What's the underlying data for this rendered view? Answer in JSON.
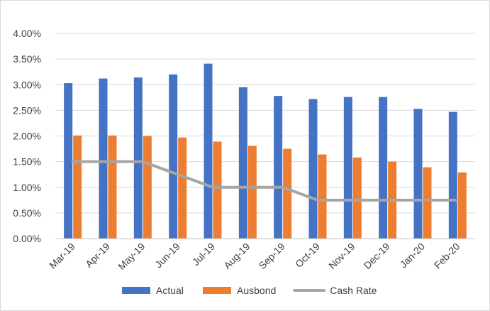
{
  "chart_data": {
    "type": "bar",
    "categories": [
      "Mar-19",
      "Apr-19",
      "May-19",
      "Jun-19",
      "Jul-19",
      "Aug-19",
      "Sep-19",
      "Oct-19",
      "Nov-19",
      "Dec-19",
      "Jan-20",
      "Feb-20"
    ],
    "series": [
      {
        "name": "Actual",
        "kind": "bar",
        "color": "#4472c4",
        "values": [
          3.03,
          3.12,
          3.14,
          3.2,
          3.41,
          2.95,
          2.78,
          2.72,
          2.76,
          2.76,
          2.53,
          2.47
        ]
      },
      {
        "name": "Ausbond",
        "kind": "bar",
        "color": "#ed7d31",
        "values": [
          2.01,
          2.01,
          2.0,
          1.97,
          1.89,
          1.81,
          1.75,
          1.64,
          1.58,
          1.5,
          1.39,
          1.29
        ]
      },
      {
        "name": "Cash Rate",
        "kind": "line",
        "color": "#a5a5a5",
        "values": [
          1.5,
          1.5,
          1.5,
          1.25,
          1.0,
          1.0,
          1.0,
          0.75,
          0.75,
          0.75,
          0.75,
          0.75
        ]
      }
    ],
    "y_ticks": [
      "0.00%",
      "0.50%",
      "1.00%",
      "1.50%",
      "2.00%",
      "2.50%",
      "3.00%",
      "3.50%",
      "4.00%"
    ],
    "ylim": [
      0,
      4
    ],
    "y_unit": "%",
    "grid": true,
    "legend_position": "bottom",
    "title": "",
    "xlabel": "",
    "ylabel": ""
  }
}
